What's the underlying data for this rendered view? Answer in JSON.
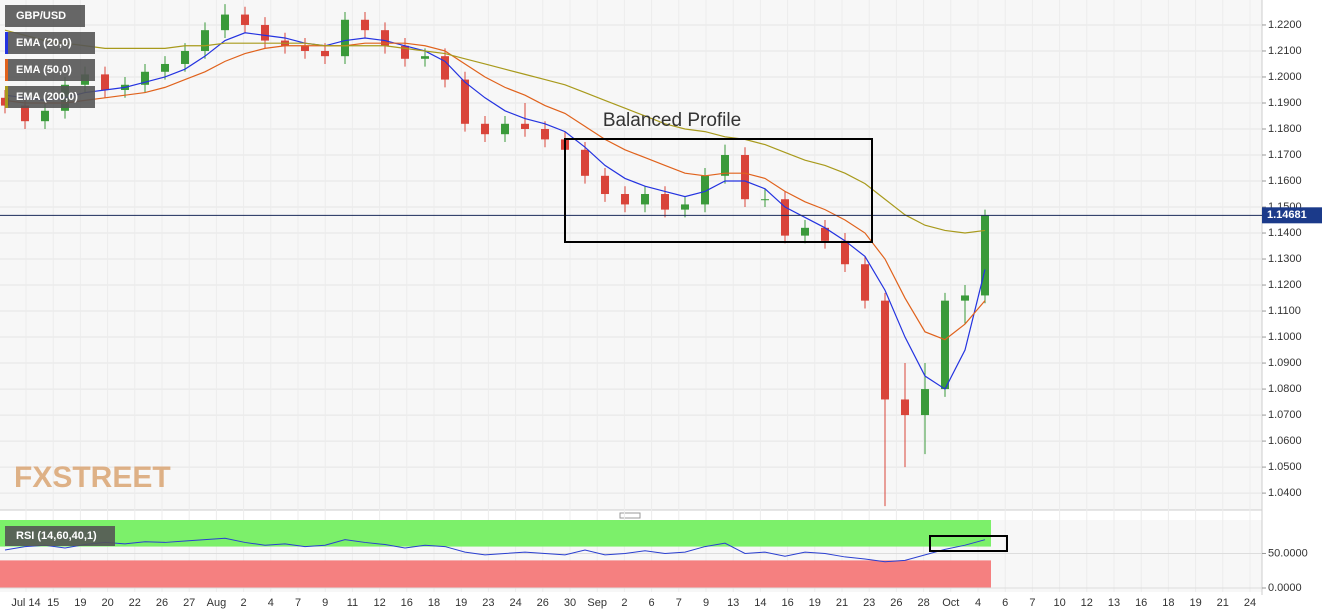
{
  "chart_data": [
    {
      "type": "candlestick",
      "title": "GBP/USD",
      "open": [
        1.192,
        1.189,
        1.183,
        1.187,
        1.197,
        1.201,
        1.195,
        1.197,
        1.202,
        1.205,
        1.21,
        1.218,
        1.224,
        1.22,
        1.214,
        1.212,
        1.21,
        1.208,
        1.222,
        1.218,
        1.212,
        1.207,
        1.208,
        1.199,
        1.182,
        1.178,
        1.182,
        1.18,
        1.176,
        1.172,
        1.162,
        1.155,
        1.151,
        1.155,
        1.149,
        1.151,
        1.162,
        1.17,
        1.153,
        1.153,
        1.139,
        1.142,
        1.137,
        1.128,
        1.114,
        1.076,
        1.07,
        1.08,
        1.114,
        1.116
      ],
      "high": [
        1.195,
        1.192,
        1.19,
        1.2,
        1.204,
        1.204,
        1.2,
        1.205,
        1.208,
        1.213,
        1.221,
        1.228,
        1.227,
        1.223,
        1.217,
        1.215,
        1.213,
        1.225,
        1.225,
        1.221,
        1.215,
        1.211,
        1.211,
        1.202,
        1.185,
        1.185,
        1.19,
        1.183,
        1.179,
        1.175,
        1.165,
        1.158,
        1.158,
        1.158,
        1.154,
        1.165,
        1.174,
        1.173,
        1.157,
        1.156,
        1.145,
        1.145,
        1.14,
        1.131,
        1.117,
        1.09,
        1.09,
        1.117,
        1.12,
        1.149
      ],
      "low": [
        1.186,
        1.18,
        1.18,
        1.184,
        1.194,
        1.192,
        1.192,
        1.194,
        1.199,
        1.202,
        1.207,
        1.215,
        1.217,
        1.211,
        1.209,
        1.207,
        1.205,
        1.205,
        1.215,
        1.209,
        1.204,
        1.204,
        1.196,
        1.179,
        1.175,
        1.175,
        1.177,
        1.173,
        1.169,
        1.159,
        1.152,
        1.148,
        1.148,
        1.146,
        1.146,
        1.148,
        1.159,
        1.15,
        1.15,
        1.136,
        1.136,
        1.134,
        1.125,
        1.111,
        1.035,
        1.05,
        1.055,
        1.077,
        1.105,
        1.113
      ],
      "close": [
        1.189,
        1.183,
        1.187,
        1.197,
        1.201,
        1.195,
        1.197,
        1.202,
        1.205,
        1.21,
        1.218,
        1.224,
        1.22,
        1.214,
        1.212,
        1.21,
        1.208,
        1.222,
        1.218,
        1.212,
        1.207,
        1.208,
        1.199,
        1.182,
        1.178,
        1.182,
        1.18,
        1.176,
        1.172,
        1.162,
        1.155,
        1.151,
        1.155,
        1.149,
        1.151,
        1.162,
        1.17,
        1.153,
        1.153,
        1.139,
        1.142,
        1.137,
        1.128,
        1.114,
        1.076,
        1.07,
        1.08,
        1.114,
        1.116,
        1.14681
      ],
      "up_color": "#3a9a3a",
      "down_color": "#d9443a",
      "series": [
        {
          "name": "EMA (20,0)",
          "color": "#2433e0",
          "values": [
            1.193,
            1.192,
            1.191,
            1.192,
            1.194,
            1.195,
            1.196,
            1.198,
            1.2,
            1.203,
            1.208,
            1.214,
            1.217,
            1.216,
            1.215,
            1.213,
            1.212,
            1.214,
            1.215,
            1.214,
            1.212,
            1.21,
            1.206,
            1.198,
            1.192,
            1.187,
            1.184,
            1.182,
            1.179,
            1.173,
            1.166,
            1.161,
            1.158,
            1.156,
            1.154,
            1.156,
            1.16,
            1.16,
            1.157,
            1.15,
            1.146,
            1.142,
            1.137,
            1.131,
            1.118,
            1.1,
            1.085,
            1.08,
            1.095,
            1.126
          ]
        },
        {
          "name": "EMA (50,0)",
          "color": "#e0621c",
          "values": [
            1.191,
            1.19,
            1.19,
            1.19,
            1.191,
            1.192,
            1.193,
            1.194,
            1.196,
            1.199,
            1.202,
            1.206,
            1.209,
            1.211,
            1.212,
            1.212,
            1.212,
            1.212,
            1.213,
            1.213,
            1.213,
            1.212,
            1.21,
            1.205,
            1.2,
            1.196,
            1.193,
            1.189,
            1.186,
            1.181,
            1.176,
            1.172,
            1.169,
            1.166,
            1.163,
            1.162,
            1.163,
            1.163,
            1.161,
            1.156,
            1.152,
            1.149,
            1.145,
            1.14,
            1.13,
            1.115,
            1.102,
            1.099,
            1.105,
            1.114
          ]
        },
        {
          "name": "EMA (200,0)",
          "color": "#a89a1c",
          "values": [
            1.218,
            1.216,
            1.214,
            1.213,
            1.212,
            1.211,
            1.211,
            1.211,
            1.211,
            1.212,
            1.212,
            1.213,
            1.213,
            1.213,
            1.213,
            1.213,
            1.212,
            1.212,
            1.212,
            1.212,
            1.211,
            1.21,
            1.209,
            1.207,
            1.205,
            1.203,
            1.201,
            1.199,
            1.197,
            1.194,
            1.191,
            1.188,
            1.185,
            1.182,
            1.18,
            1.179,
            1.177,
            1.176,
            1.174,
            1.171,
            1.168,
            1.166,
            1.163,
            1.159,
            1.153,
            1.147,
            1.143,
            1.141,
            1.14,
            1.141
          ]
        }
      ],
      "last_price": 1.14681,
      "annotation": "Balanced Profile",
      "watermark": "FXSTREET",
      "ylim": [
        1.0335,
        1.2296
      ],
      "yticks": [
        {
          "value": 1.04,
          "label": "1.0400"
        },
        {
          "value": 1.05,
          "label": "1.0500"
        },
        {
          "value": 1.06,
          "label": "1.0600"
        },
        {
          "value": 1.07,
          "label": "1.0700"
        },
        {
          "value": 1.08,
          "label": "1.0800"
        },
        {
          "value": 1.09,
          "label": "1.0900"
        },
        {
          "value": 1.1,
          "label": "1.1000"
        },
        {
          "value": 1.11,
          "label": "1.1100"
        },
        {
          "value": 1.12,
          "label": "1.1200"
        },
        {
          "value": 1.13,
          "label": "1.1300"
        },
        {
          "value": 1.14,
          "label": "1.1400"
        },
        {
          "value": 1.15,
          "label": "1.1500"
        },
        {
          "value": 1.16,
          "label": "1.1600"
        },
        {
          "value": 1.17,
          "label": "1.1700"
        },
        {
          "value": 1.18,
          "label": "1.1800"
        },
        {
          "value": 1.19,
          "label": "1.1900"
        },
        {
          "value": 1.2,
          "label": "1.2000"
        },
        {
          "value": 1.21,
          "label": "1.2100"
        },
        {
          "value": 1.22,
          "label": "1.2200"
        }
      ],
      "x_labels": [
        "Jul 14",
        "15",
        "19",
        "20",
        "22",
        "26",
        "27",
        "Aug",
        "2",
        "4",
        "7",
        "9",
        "11",
        "12",
        "16",
        "18",
        "19",
        "23",
        "24",
        "26",
        "30",
        "Sep",
        "2",
        "6",
        "7",
        "9",
        "13",
        "14",
        "16",
        "19",
        "21",
        "23",
        "26",
        "28",
        "Oct",
        "4",
        "6",
        "7",
        "10",
        "12",
        "13",
        "16",
        "18",
        "19",
        "21",
        "24"
      ],
      "grid": true
    },
    {
      "type": "line",
      "title": "RSI (14,60,40,1)",
      "color": "#2a3fd0",
      "values": [
        55,
        60,
        62,
        58,
        63,
        66,
        64,
        67,
        66,
        68,
        70,
        72,
        66,
        62,
        64,
        60,
        62,
        70,
        66,
        63,
        58,
        62,
        60,
        52,
        48,
        50,
        52,
        50,
        48,
        55,
        48,
        50,
        54,
        50,
        52,
        60,
        65,
        50,
        52,
        46,
        52,
        50,
        45,
        42,
        38,
        40,
        48,
        56,
        62,
        70
      ],
      "upper_level": 60,
      "lower_level": 40,
      "ylim": [
        0,
        98.5
      ],
      "yticks": [
        {
          "value": 50,
          "label": "50.0000"
        },
        {
          "value": 0,
          "label": "0.0000"
        }
      ]
    }
  ]
}
